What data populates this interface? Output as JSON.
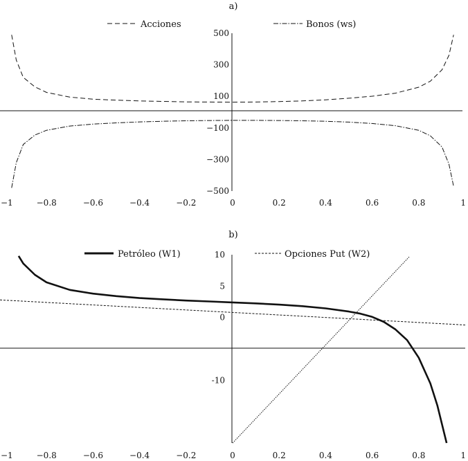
{
  "chart_data": [
    {
      "type": "line",
      "panel_label": "a)",
      "title": "",
      "xlabel": "",
      "ylabel": "",
      "xlim": [
        -1,
        1
      ],
      "ylim": [
        -500,
        500
      ],
      "x_ticks": [
        -1,
        -0.8,
        -0.6,
        -0.4,
        -0.2,
        0,
        0.2,
        0.4,
        0.6,
        0.8,
        1
      ],
      "x_tick_labels": [
        "−1",
        "−0.8",
        "−0.6",
        "−0.4",
        "−0.2",
        "0",
        "0.2",
        "0.4",
        "0.6",
        "0.8",
        "1"
      ],
      "y_ticks": [
        500,
        300,
        100,
        -100,
        -300,
        -500
      ],
      "y_tick_labels": [
        "500",
        "300",
        "100",
        "−100",
        "−300",
        "−500"
      ],
      "legend_position": "top",
      "series": [
        {
          "name": "Acciones",
          "style": "dashed",
          "x": [
            -0.95,
            -0.93,
            -0.9,
            -0.85,
            -0.8,
            -0.7,
            -0.6,
            -0.5,
            -0.4,
            -0.3,
            -0.2,
            -0.1,
            0,
            0.1,
            0.2,
            0.3,
            0.4,
            0.5,
            0.6,
            0.7,
            0.8,
            0.85,
            0.9,
            0.93,
            0.95
          ],
          "y": [
            490,
            330,
            220,
            160,
            125,
            95,
            82,
            76,
            71,
            68,
            65,
            64,
            63,
            64,
            67,
            71,
            78,
            88,
            101,
            120,
            158,
            196,
            268,
            360,
            490
          ]
        },
        {
          "name": "Bonos (ws)",
          "style": "dashdot",
          "x": [
            -0.95,
            -0.93,
            -0.9,
            -0.85,
            -0.8,
            -0.7,
            -0.6,
            -0.5,
            -0.4,
            -0.3,
            -0.2,
            -0.1,
            0,
            0.1,
            0.2,
            0.3,
            0.4,
            0.5,
            0.6,
            0.7,
            0.8,
            0.85,
            0.9,
            0.93,
            0.95
          ],
          "y": [
            -480,
            -320,
            -205,
            -145,
            -115,
            -88,
            -76,
            -68,
            -62,
            -58,
            -55,
            -53,
            -52,
            -52,
            -53,
            -55,
            -58,
            -63,
            -72,
            -86,
            -115,
            -150,
            -220,
            -330,
            -470
          ]
        }
      ]
    },
    {
      "type": "line",
      "panel_label": "b)",
      "title": "",
      "xlabel": "",
      "ylabel": "",
      "xlim": [
        -1,
        1
      ],
      "ylim": [
        -20,
        10
      ],
      "x_ticks": [
        -1,
        -0.8,
        -0.6,
        -0.4,
        -0.2,
        0,
        0.2,
        0.4,
        0.6,
        0.8,
        1
      ],
      "x_tick_labels": [
        "−1",
        "−0.8",
        "−0.6",
        "−0.4",
        "−0.2",
        "0",
        "0.2",
        "0.4",
        "0.6",
        "0.8",
        "1"
      ],
      "y_ticks": [
        10,
        5,
        0,
        -10
      ],
      "y_tick_labels": [
        "10",
        "5",
        "0",
        "-10"
      ],
      "legend_position": "top",
      "series": [
        {
          "name": "Petróleo (W1)",
          "style": "solid-thick",
          "x": [
            -0.92,
            -0.9,
            -0.85,
            -0.8,
            -0.7,
            -0.6,
            -0.5,
            -0.4,
            -0.3,
            -0.2,
            -0.1,
            0,
            0.1,
            0.2,
            0.3,
            0.4,
            0.5,
            0.55,
            0.6,
            0.65,
            0.7,
            0.75,
            0.8,
            0.85,
            0.88,
            0.9,
            0.92
          ],
          "y": [
            9.8,
            8.6,
            6.8,
            5.6,
            4.4,
            3.8,
            3.4,
            3.1,
            2.9,
            2.7,
            2.55,
            2.4,
            2.25,
            2.05,
            1.8,
            1.45,
            0.95,
            0.6,
            0.1,
            -0.7,
            -1.9,
            -3.6,
            -6.4,
            -10.5,
            -14,
            -17,
            -20
          ]
        },
        {
          "name": "Opciones Put (W2)",
          "style": "dashed",
          "x": [
            -1,
            1
          ],
          "y": [
            2.8,
            -1.2
          ]
        },
        {
          "name": "",
          "style": "dotted",
          "x": [
            0,
            0.76
          ],
          "y": [
            -20,
            9.7
          ]
        }
      ]
    }
  ]
}
